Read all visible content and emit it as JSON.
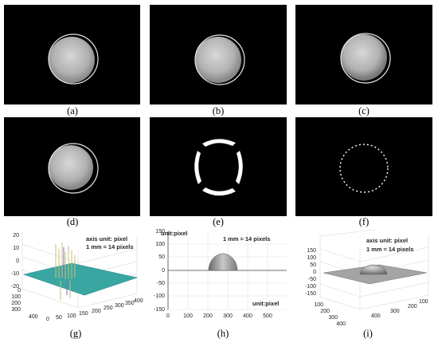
{
  "figure": {
    "labels": [
      "(a)",
      "(b)",
      "(c)",
      "(d)",
      "(e)",
      "(f)",
      "(g)",
      "(h)",
      "(i)"
    ]
  },
  "plot_g": {
    "note_axis": "axis unit: pixel",
    "note_scale": "1 mm ≈ 14 pixels",
    "z_ticks": [
      "20",
      "10",
      "0",
      "-10",
      "-20"
    ],
    "y_ticks": [
      "400",
      "300",
      "200",
      "100",
      "0"
    ],
    "x_ticks": [
      "0",
      "50",
      "100",
      "150",
      "200",
      "250",
      "300",
      "350",
      "400"
    ],
    "colors": {
      "surface": "#3aa6a2",
      "spikes": "#c8c070"
    }
  },
  "plot_h": {
    "unit_y": "unit:pixel",
    "unit_x": "unit:pixel",
    "note_scale": "1 mm ≈ 14 pixels",
    "y_ticks": [
      "150",
      "100",
      "50",
      "0",
      "-50",
      "-100",
      "-150"
    ],
    "x_ticks": [
      "0",
      "100",
      "200",
      "300",
      "400",
      "500"
    ]
  },
  "plot_i": {
    "note_axis": "axis unit: pixel",
    "note_scale": "1 mm ≈ 14 pixels",
    "z_ticks": [
      "150",
      "100",
      "50",
      "0",
      "-50",
      "-100",
      "-150"
    ],
    "y_ticks": [
      "100",
      "200",
      "300",
      "400"
    ],
    "x_ticks": [
      "400",
      "300",
      "200",
      "100"
    ]
  }
}
